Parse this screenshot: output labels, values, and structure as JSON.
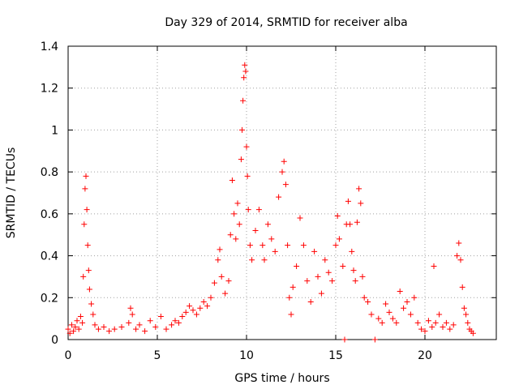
{
  "chart_data": {
    "type": "scatter",
    "title": "Day 329 of 2014, SRMTID for receiver alba",
    "xlabel": "GPS time / hours",
    "ylabel": "SRMTID / TECUs",
    "xlim": [
      0,
      24
    ],
    "ylim": [
      0,
      1.4
    ],
    "x_ticks": [
      0,
      5,
      10,
      15,
      20
    ],
    "x_tick_labels": [
      "0",
      "5",
      "10",
      "15",
      "20"
    ],
    "y_ticks": [
      0,
      0.2,
      0.4,
      0.6,
      0.8,
      1.0,
      1.2,
      1.4
    ],
    "y_tick_labels": [
      "0",
      "0.2",
      "0.4",
      "0.6",
      "0.8",
      "1",
      "1.2",
      "1.4"
    ],
    "grid": true,
    "marker": "+",
    "color": "#ff0000",
    "series": [
      {
        "name": "SRMTID",
        "points": [
          [
            0.0,
            0.05
          ],
          [
            0.1,
            0.03
          ],
          [
            0.2,
            0.07
          ],
          [
            0.3,
            0.04
          ],
          [
            0.4,
            0.06
          ],
          [
            0.5,
            0.09
          ],
          [
            0.6,
            0.05
          ],
          [
            0.7,
            0.11
          ],
          [
            0.8,
            0.08
          ],
          [
            0.85,
            0.3
          ],
          [
            0.9,
            0.55
          ],
          [
            0.95,
            0.72
          ],
          [
            1.0,
            0.78
          ],
          [
            1.05,
            0.62
          ],
          [
            1.1,
            0.45
          ],
          [
            1.15,
            0.33
          ],
          [
            1.2,
            0.24
          ],
          [
            1.3,
            0.17
          ],
          [
            1.4,
            0.12
          ],
          [
            1.5,
            0.07
          ],
          [
            1.7,
            0.05
          ],
          [
            2.0,
            0.06
          ],
          [
            2.3,
            0.04
          ],
          [
            2.6,
            0.05
          ],
          [
            3.0,
            0.06
          ],
          [
            3.4,
            0.08
          ],
          [
            3.5,
            0.15
          ],
          [
            3.6,
            0.12
          ],
          [
            3.8,
            0.05
          ],
          [
            4.0,
            0.07
          ],
          [
            4.3,
            0.04
          ],
          [
            4.6,
            0.09
          ],
          [
            4.9,
            0.06
          ],
          [
            5.2,
            0.11
          ],
          [
            5.5,
            0.05
          ],
          [
            5.8,
            0.07
          ],
          [
            6.0,
            0.09
          ],
          [
            6.2,
            0.08
          ],
          [
            6.4,
            0.11
          ],
          [
            6.6,
            0.13
          ],
          [
            6.8,
            0.16
          ],
          [
            7.0,
            0.14
          ],
          [
            7.2,
            0.12
          ],
          [
            7.4,
            0.15
          ],
          [
            7.6,
            0.18
          ],
          [
            7.8,
            0.16
          ],
          [
            8.0,
            0.2
          ],
          [
            8.2,
            0.27
          ],
          [
            8.4,
            0.38
          ],
          [
            8.5,
            0.43
          ],
          [
            8.6,
            0.3
          ],
          [
            8.8,
            0.22
          ],
          [
            9.0,
            0.28
          ],
          [
            9.1,
            0.5
          ],
          [
            9.2,
            0.76
          ],
          [
            9.3,
            0.6
          ],
          [
            9.4,
            0.48
          ],
          [
            9.5,
            0.65
          ],
          [
            9.6,
            0.55
          ],
          [
            9.7,
            0.86
          ],
          [
            9.75,
            1.0
          ],
          [
            9.8,
            1.14
          ],
          [
            9.85,
            1.25
          ],
          [
            9.9,
            1.31
          ],
          [
            9.95,
            1.28
          ],
          [
            10.0,
            0.92
          ],
          [
            10.05,
            0.78
          ],
          [
            10.1,
            0.62
          ],
          [
            10.2,
            0.45
          ],
          [
            10.3,
            0.38
          ],
          [
            10.5,
            0.52
          ],
          [
            10.7,
            0.62
          ],
          [
            10.9,
            0.45
          ],
          [
            11.0,
            0.38
          ],
          [
            11.2,
            0.55
          ],
          [
            11.4,
            0.48
          ],
          [
            11.6,
            0.42
          ],
          [
            11.8,
            0.68
          ],
          [
            12.0,
            0.8
          ],
          [
            12.1,
            0.85
          ],
          [
            12.2,
            0.74
          ],
          [
            12.3,
            0.45
          ],
          [
            12.4,
            0.2
          ],
          [
            12.5,
            0.12
          ],
          [
            12.6,
            0.25
          ],
          [
            12.8,
            0.35
          ],
          [
            13.0,
            0.58
          ],
          [
            13.2,
            0.45
          ],
          [
            13.4,
            0.28
          ],
          [
            13.6,
            0.18
          ],
          [
            13.8,
            0.42
          ],
          [
            14.0,
            0.3
          ],
          [
            14.2,
            0.22
          ],
          [
            14.4,
            0.38
          ],
          [
            14.6,
            0.32
          ],
          [
            14.8,
            0.28
          ],
          [
            15.0,
            0.45
          ],
          [
            15.1,
            0.59
          ],
          [
            15.2,
            0.48
          ],
          [
            15.4,
            0.35
          ],
          [
            15.5,
            0.0
          ],
          [
            15.6,
            0.55
          ],
          [
            15.7,
            0.66
          ],
          [
            15.8,
            0.55
          ],
          [
            15.9,
            0.42
          ],
          [
            16.0,
            0.33
          ],
          [
            16.1,
            0.28
          ],
          [
            16.2,
            0.56
          ],
          [
            16.3,
            0.72
          ],
          [
            16.4,
            0.65
          ],
          [
            16.5,
            0.3
          ],
          [
            16.6,
            0.2
          ],
          [
            16.8,
            0.18
          ],
          [
            17.0,
            0.12
          ],
          [
            17.2,
            0.0
          ],
          [
            17.4,
            0.1
          ],
          [
            17.6,
            0.08
          ],
          [
            17.8,
            0.17
          ],
          [
            18.0,
            0.13
          ],
          [
            18.2,
            0.1
          ],
          [
            18.4,
            0.08
          ],
          [
            18.6,
            0.23
          ],
          [
            18.8,
            0.15
          ],
          [
            19.0,
            0.18
          ],
          [
            19.2,
            0.12
          ],
          [
            19.4,
            0.2
          ],
          [
            19.6,
            0.08
          ],
          [
            19.8,
            0.05
          ],
          [
            20.0,
            0.04
          ],
          [
            20.2,
            0.09
          ],
          [
            20.4,
            0.06
          ],
          [
            20.5,
            0.35
          ],
          [
            20.6,
            0.08
          ],
          [
            20.8,
            0.12
          ],
          [
            21.0,
            0.06
          ],
          [
            21.2,
            0.08
          ],
          [
            21.4,
            0.05
          ],
          [
            21.6,
            0.07
          ],
          [
            21.8,
            0.4
          ],
          [
            21.9,
            0.46
          ],
          [
            22.0,
            0.38
          ],
          [
            22.1,
            0.25
          ],
          [
            22.2,
            0.15
          ],
          [
            22.3,
            0.12
          ],
          [
            22.4,
            0.08
          ],
          [
            22.5,
            0.05
          ],
          [
            22.6,
            0.04
          ],
          [
            22.7,
            0.03
          ]
        ]
      }
    ]
  }
}
